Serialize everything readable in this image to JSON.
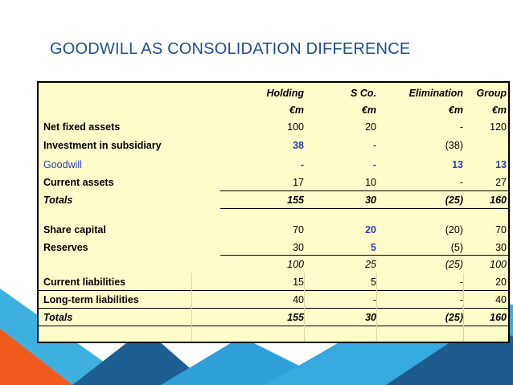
{
  "title": "GOODWILL AS CONSOLIDATION DIFFERENCE",
  "headers": [
    "Holding",
    "S Co.",
    "Elimination",
    "Group"
  ],
  "units": [
    "€m",
    "€m",
    "€m",
    "€m"
  ],
  "rows": [
    {
      "label": "Net fixed assets",
      "values": [
        "100",
        "20",
        "-",
        "120"
      ]
    },
    {
      "label": "Investment in subsidiary",
      "values": [
        "38",
        "-",
        "(38)",
        ""
      ]
    },
    {
      "label": "Goodwill",
      "values": [
        "-",
        "-",
        "13",
        "13"
      ]
    },
    {
      "label": "Current assets",
      "values": [
        "17",
        "10",
        "-",
        "27"
      ]
    },
    {
      "label": "Totals",
      "values": [
        "155",
        "30",
        "(25)",
        "160"
      ]
    },
    {
      "label": "Share capital",
      "values": [
        "70",
        "20",
        "(20)",
        "70"
      ]
    },
    {
      "label": "Reserves",
      "values": [
        "30",
        "5",
        "(5)",
        "30"
      ]
    },
    {
      "label": "",
      "values": [
        "100",
        "25",
        "(25)",
        "100"
      ]
    },
    {
      "label": "Current liabilities",
      "values": [
        "15",
        "5",
        "-",
        "20"
      ]
    },
    {
      "label": "Long-term liabilities",
      "values": [
        "40",
        "-",
        "-",
        "40"
      ]
    },
    {
      "label": "Totals",
      "values": [
        "155",
        "30",
        "(25)",
        "160"
      ]
    }
  ],
  "colors": {
    "title": "#1f4e8c",
    "table_bg": "#fffdc9",
    "highlight": "#2c3fb3",
    "deco_orange": "#f05a1e",
    "deco_blue": "#2f9fd8",
    "deco_dark": "#1d4d7a"
  }
}
